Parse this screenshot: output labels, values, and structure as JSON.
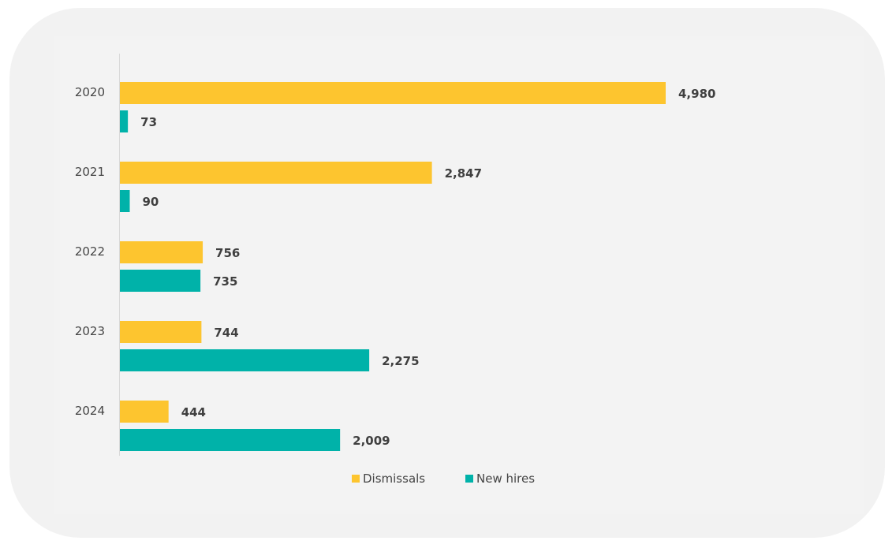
{
  "chart_data": {
    "type": "bar",
    "orientation": "horizontal",
    "categories": [
      "2020",
      "2021",
      "2022",
      "2023",
      "2024"
    ],
    "series": [
      {
        "name": "Dismissals",
        "color": "#fdc52f",
        "values": [
          4980,
          2847,
          756,
          744,
          444
        ],
        "labels": [
          "4,980",
          "2,847",
          "756",
          "744",
          "444"
        ]
      },
      {
        "name": "New hires",
        "color": "#00b2a9",
        "values": [
          73,
          90,
          735,
          2275,
          2009
        ],
        "labels": [
          "73",
          "90",
          "735",
          "2,275",
          "2,009"
        ]
      }
    ],
    "xlim": [
      0,
      6000
    ],
    "grid": false,
    "legend": "bottom"
  }
}
